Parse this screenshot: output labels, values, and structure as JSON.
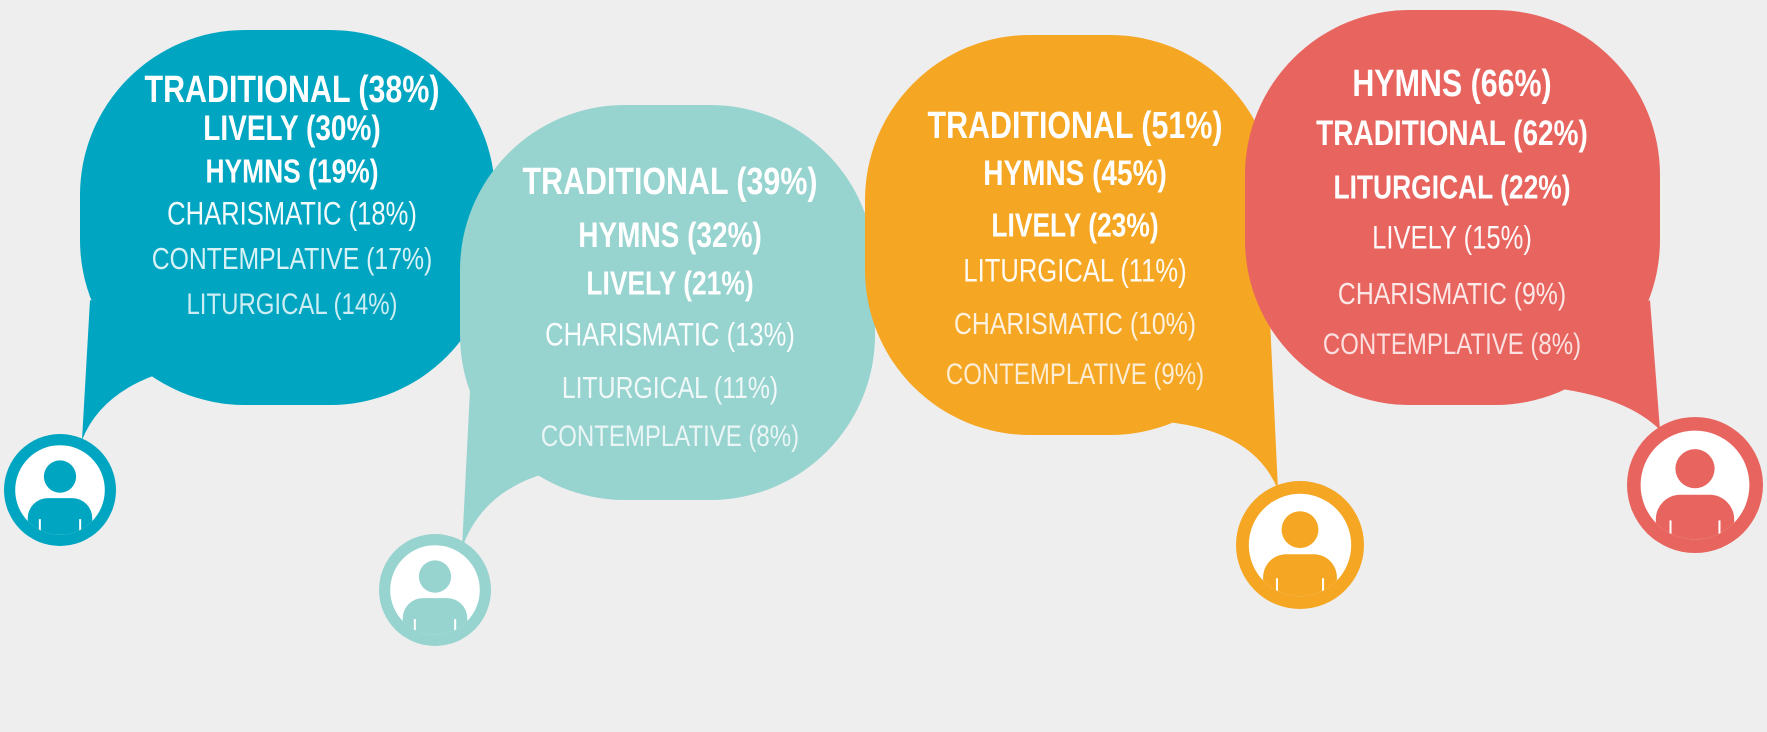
{
  "groups": [
    {
      "color": "#00a6c1",
      "lines": [
        "TRADITIONAL (38%)",
        "LIVELY (30%)",
        "HYMNS (19%)",
        "CHARISMATIC (18%)",
        "CONTEMPLATIVE (17%)",
        "LITURGICAL (14%)"
      ]
    },
    {
      "color": "#97d3cf",
      "lines": [
        "TRADITIONAL (39%)",
        "HYMNS (32%)",
        "LIVELY (21%)",
        "CHARISMATIC (13%)",
        "LITURGICAL (11%)",
        "CONTEMPLATIVE (8%)"
      ]
    },
    {
      "color": "#f5a623",
      "lines": [
        "TRADITIONAL (51%)",
        "HYMNS (45%)",
        "LIVELY (23%)",
        "LITURGICAL (11%)",
        "CHARISMATIC (10%)",
        "CONTEMPLATIVE (9%)"
      ]
    },
    {
      "color": "#e8655f",
      "lines": [
        "HYMNS (66%)",
        "TRADITIONAL (62%)",
        "LITURGICAL (22%)",
        "LIVELY (15%)",
        "CHARISMATIC (9%)",
        "CONTEMPLATIVE (8%)"
      ]
    }
  ]
}
